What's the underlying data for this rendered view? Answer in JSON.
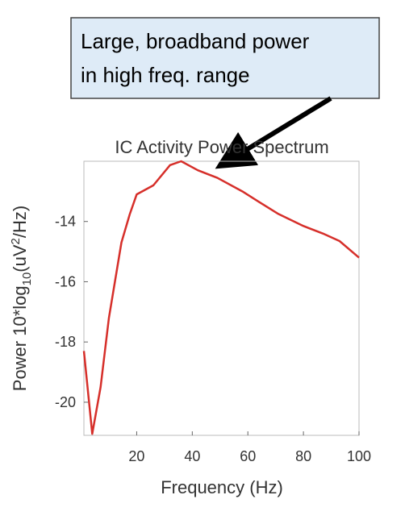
{
  "chart_data": {
    "type": "line",
    "title": "IC Activity Power Spectrum",
    "xlabel": "Frequency (Hz)",
    "ylabel": {
      "prefix": "Power 10*log",
      "sub": "10",
      "mid": "(uV",
      "sup": "2",
      "suffix": "/Hz)"
    },
    "annotation": [
      "Large, broadband power",
      "in high freq. range"
    ],
    "x": [
      1,
      4,
      7,
      10,
      14.5,
      17.5,
      20,
      26,
      32,
      36,
      42,
      49,
      58,
      64,
      71,
      80,
      87,
      93,
      100
    ],
    "series": [
      {
        "name": "IC Activity",
        "color": "#d62f2a",
        "values": [
          -18.3,
          -21.05,
          -19.5,
          -17.2,
          -14.7,
          -13.76,
          -13.1,
          -12.8,
          -12.13,
          -12.0,
          -12.3,
          -12.55,
          -13.0,
          -13.35,
          -13.75,
          -14.15,
          -14.4,
          -14.65,
          -15.2
        ]
      }
    ],
    "xlim": [
      1,
      100
    ],
    "ylim": [
      -21.1,
      -12
    ],
    "xticks": [
      20,
      40,
      60,
      80,
      100
    ],
    "yticks": [
      -14,
      -16,
      -18,
      -20
    ]
  }
}
